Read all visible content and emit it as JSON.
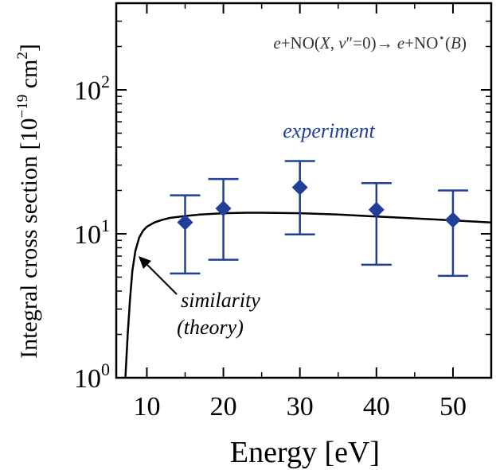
{
  "chart_data": {
    "type": "scatter",
    "xlabel": "Energy [eV]",
    "ylabel": "Integral cross section",
    "ylabel_unit_prefix": "[10",
    "ylabel_unit_exp": "−19",
    "ylabel_unit_mid": " cm",
    "ylabel_unit_exp2": "2",
    "ylabel_unit_suffix": "]",
    "xlim": [
      6,
      55
    ],
    "ylim": [
      1,
      400
    ],
    "yscale": "log",
    "xticks": [
      10,
      20,
      30,
      40,
      50
    ],
    "ytick_base": "10",
    "ytick_exps": [
      "0",
      "1",
      "2"
    ],
    "ytick_values": [
      1,
      10,
      100
    ],
    "reaction": {
      "a": "e",
      "b": "+NO(",
      "c": "X",
      "d": ", ",
      "e": "v",
      "f": "″",
      "g": "=0)→ ",
      "h": "e",
      "i": "+NO",
      "j": "⋆",
      "k": "(",
      "l": "B",
      "m": ")"
    },
    "series": [
      {
        "name": "experiment",
        "color": "#1f3f99",
        "marker": "diamond",
        "x": [
          15,
          20,
          30,
          40,
          50
        ],
        "y": [
          12.0,
          15.0,
          21.0,
          14.7,
          12.5
        ],
        "err_low": [
          5.3,
          6.6,
          9.9,
          6.1,
          5.1
        ],
        "err_high": [
          18.5,
          24.0,
          32.0,
          22.5,
          20.0
        ]
      },
      {
        "name": "similarity",
        "name_line2": "(theory)",
        "color": "#000000",
        "style": "line",
        "x": [
          7.2,
          7.5,
          7.8,
          8.1,
          8.5,
          9,
          9.5,
          10,
          11,
          12,
          13,
          15,
          17,
          20,
          23,
          25,
          30,
          35,
          40,
          45,
          50,
          55
        ],
        "y": [
          1.0,
          2.0,
          3.5,
          5.5,
          7.6,
          9.4,
          10.5,
          11.2,
          12.0,
          12.5,
          12.9,
          13.3,
          13.6,
          13.9,
          14.0,
          14.0,
          13.9,
          13.6,
          13.2,
          12.8,
          12.4,
          12.0
        ]
      }
    ]
  }
}
